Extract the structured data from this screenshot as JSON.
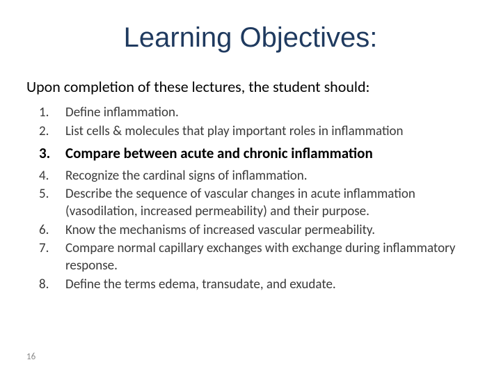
{
  "title": "Learning Objectives:",
  "subtitle": "Upon completion of these lectures, the student should:",
  "items": [
    {
      "num": "1.",
      "text": "Define inflammation.",
      "bold": false
    },
    {
      "num": "2.",
      "text": "List cells  & molecules that play important roles in inflammation",
      "bold": false
    },
    {
      "num": "3.",
      "text": "Compare between acute and chronic inflammation",
      "bold": true
    },
    {
      "num": "4.",
      "text": "Recognize the cardinal signs of inflammation.",
      "bold": false
    },
    {
      "num": "5.",
      "text": "Describe the sequence of vascular changes in acute inflammation (vasodilation, increased permeability) and their purpose.",
      "bold": false
    },
    {
      "num": "6.",
      "text": " Know the mechanisms of increased vascular permeability.",
      "bold": false
    },
    {
      "num": "7.",
      "text": "Compare normal capillary exchanges with exchange during inflammatory response.",
      "bold": false
    },
    {
      "num": "8.",
      "text": "Define the terms edema, transudate, and exudate.",
      "bold": false
    }
  ],
  "pageNumber": "16",
  "colors": {
    "title": "#1f3a5f",
    "body": "#3a3a3a",
    "bold": "#000000",
    "pageNum": "#8a8a8a",
    "background": "#ffffff"
  },
  "fonts": {
    "titleSize": 40,
    "subtitleSize": 22,
    "itemSize": 19,
    "boldItemSize": 21,
    "pageNumSize": 13
  }
}
